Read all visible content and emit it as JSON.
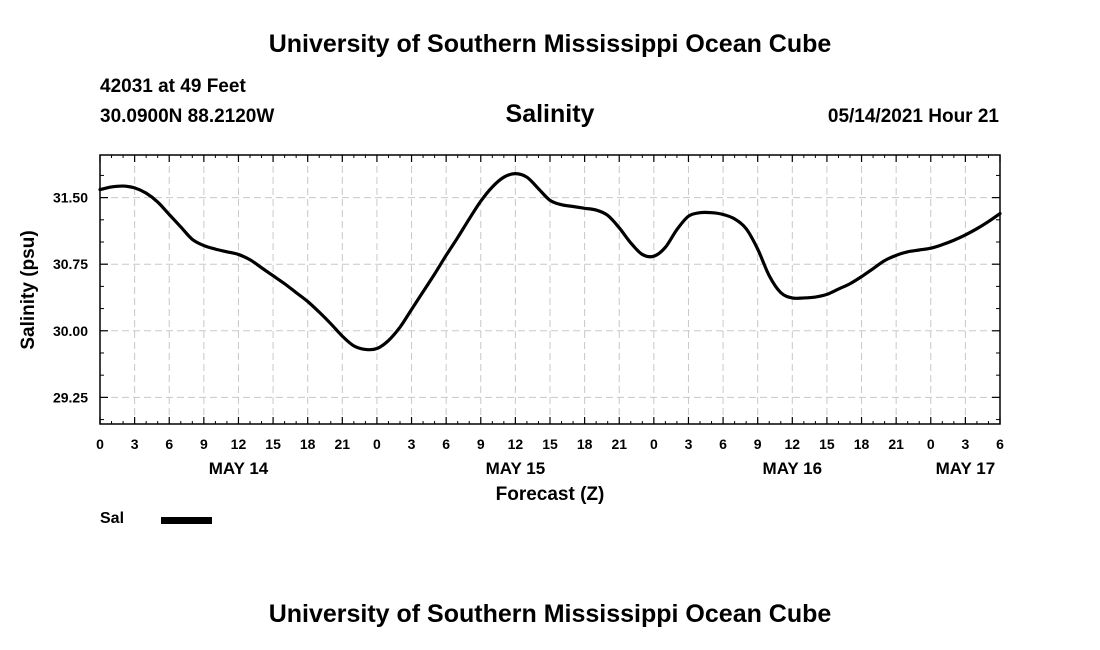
{
  "header": {
    "top_title": "University of Southern Mississippi Ocean Cube",
    "station": "42031 at 49 Feet",
    "coordinates": "30.0900N  88.2120W",
    "datetime": "05/14/2021 Hour 21"
  },
  "footer": {
    "bottom_title": "University of Southern Mississippi Ocean Cube"
  },
  "legend": {
    "label": "Sal"
  },
  "colors": {
    "line": "#000000",
    "grid": "#c8c8c8",
    "axis": "#000000"
  },
  "chart_data": {
    "type": "line",
    "title": "Salinity",
    "xlabel": "Forecast (Z)",
    "ylabel": "Salinity (psu)",
    "xlim": [
      0,
      78
    ],
    "ylim": [
      28.95,
      31.98
    ],
    "grid": true,
    "x_unit": "hours since 2021-05-14 00Z",
    "x_ticks": [
      0,
      3,
      6,
      9,
      12,
      15,
      18,
      21,
      24,
      27,
      30,
      33,
      36,
      39,
      42,
      45,
      48,
      51,
      54,
      57,
      60,
      63,
      66,
      69,
      72,
      75,
      78
    ],
    "x_tick_labels": [
      "0",
      "3",
      "6",
      "9",
      "12",
      "15",
      "18",
      "21",
      "0",
      "3",
      "6",
      "9",
      "12",
      "15",
      "18",
      "21",
      "0",
      "3",
      "6",
      "9",
      "12",
      "15",
      "18",
      "21",
      "0",
      "3",
      "6"
    ],
    "day_labels": [
      {
        "x": 12,
        "label": "MAY 14"
      },
      {
        "x": 36,
        "label": "MAY 15"
      },
      {
        "x": 60,
        "label": "MAY 16"
      },
      {
        "x": 75,
        "label": "MAY 17"
      }
    ],
    "y_ticks": [
      29.25,
      30.0,
      30.75,
      31.5
    ],
    "y_tick_labels": [
      "29.25",
      "30.00",
      "30.75",
      "31.50"
    ],
    "series": [
      {
        "name": "Sal",
        "x": [
          0,
          1,
          2,
          3,
          4,
          5,
          6,
          7,
          8,
          9,
          10,
          11,
          12,
          13,
          14,
          15,
          16,
          17,
          18,
          19,
          20,
          21,
          22,
          23,
          24,
          25,
          26,
          27,
          28,
          29,
          30,
          31,
          32,
          33,
          34,
          35,
          36,
          37,
          38,
          39,
          40,
          41,
          42,
          43,
          44,
          45,
          46,
          47,
          48,
          49,
          50,
          51,
          52,
          53,
          54,
          55,
          56,
          57,
          58,
          59,
          60,
          61,
          62,
          63,
          64,
          65,
          66,
          67,
          68,
          69,
          70,
          71,
          72,
          73,
          74,
          75,
          76,
          77,
          78
        ],
        "values": [
          31.59,
          31.62,
          31.63,
          31.61,
          31.55,
          31.45,
          31.31,
          31.17,
          31.03,
          30.96,
          30.92,
          30.89,
          30.86,
          30.8,
          30.71,
          30.62,
          30.53,
          30.43,
          30.33,
          30.21,
          30.08,
          29.94,
          29.83,
          29.79,
          29.8,
          29.89,
          30.04,
          30.24,
          30.44,
          30.64,
          30.85,
          31.05,
          31.26,
          31.46,
          31.62,
          31.73,
          31.77,
          31.73,
          31.6,
          31.47,
          31.42,
          31.4,
          31.38,
          31.36,
          31.3,
          31.16,
          30.99,
          30.86,
          30.84,
          30.94,
          31.14,
          31.29,
          31.33,
          31.33,
          31.31,
          31.26,
          31.15,
          30.92,
          30.62,
          30.43,
          30.37,
          30.37,
          30.38,
          30.41,
          30.47,
          30.53,
          30.61,
          30.7,
          30.79,
          30.85,
          30.89,
          30.91,
          30.93,
          30.97,
          31.02,
          31.08,
          31.15,
          31.23,
          31.32
        ]
      }
    ]
  }
}
